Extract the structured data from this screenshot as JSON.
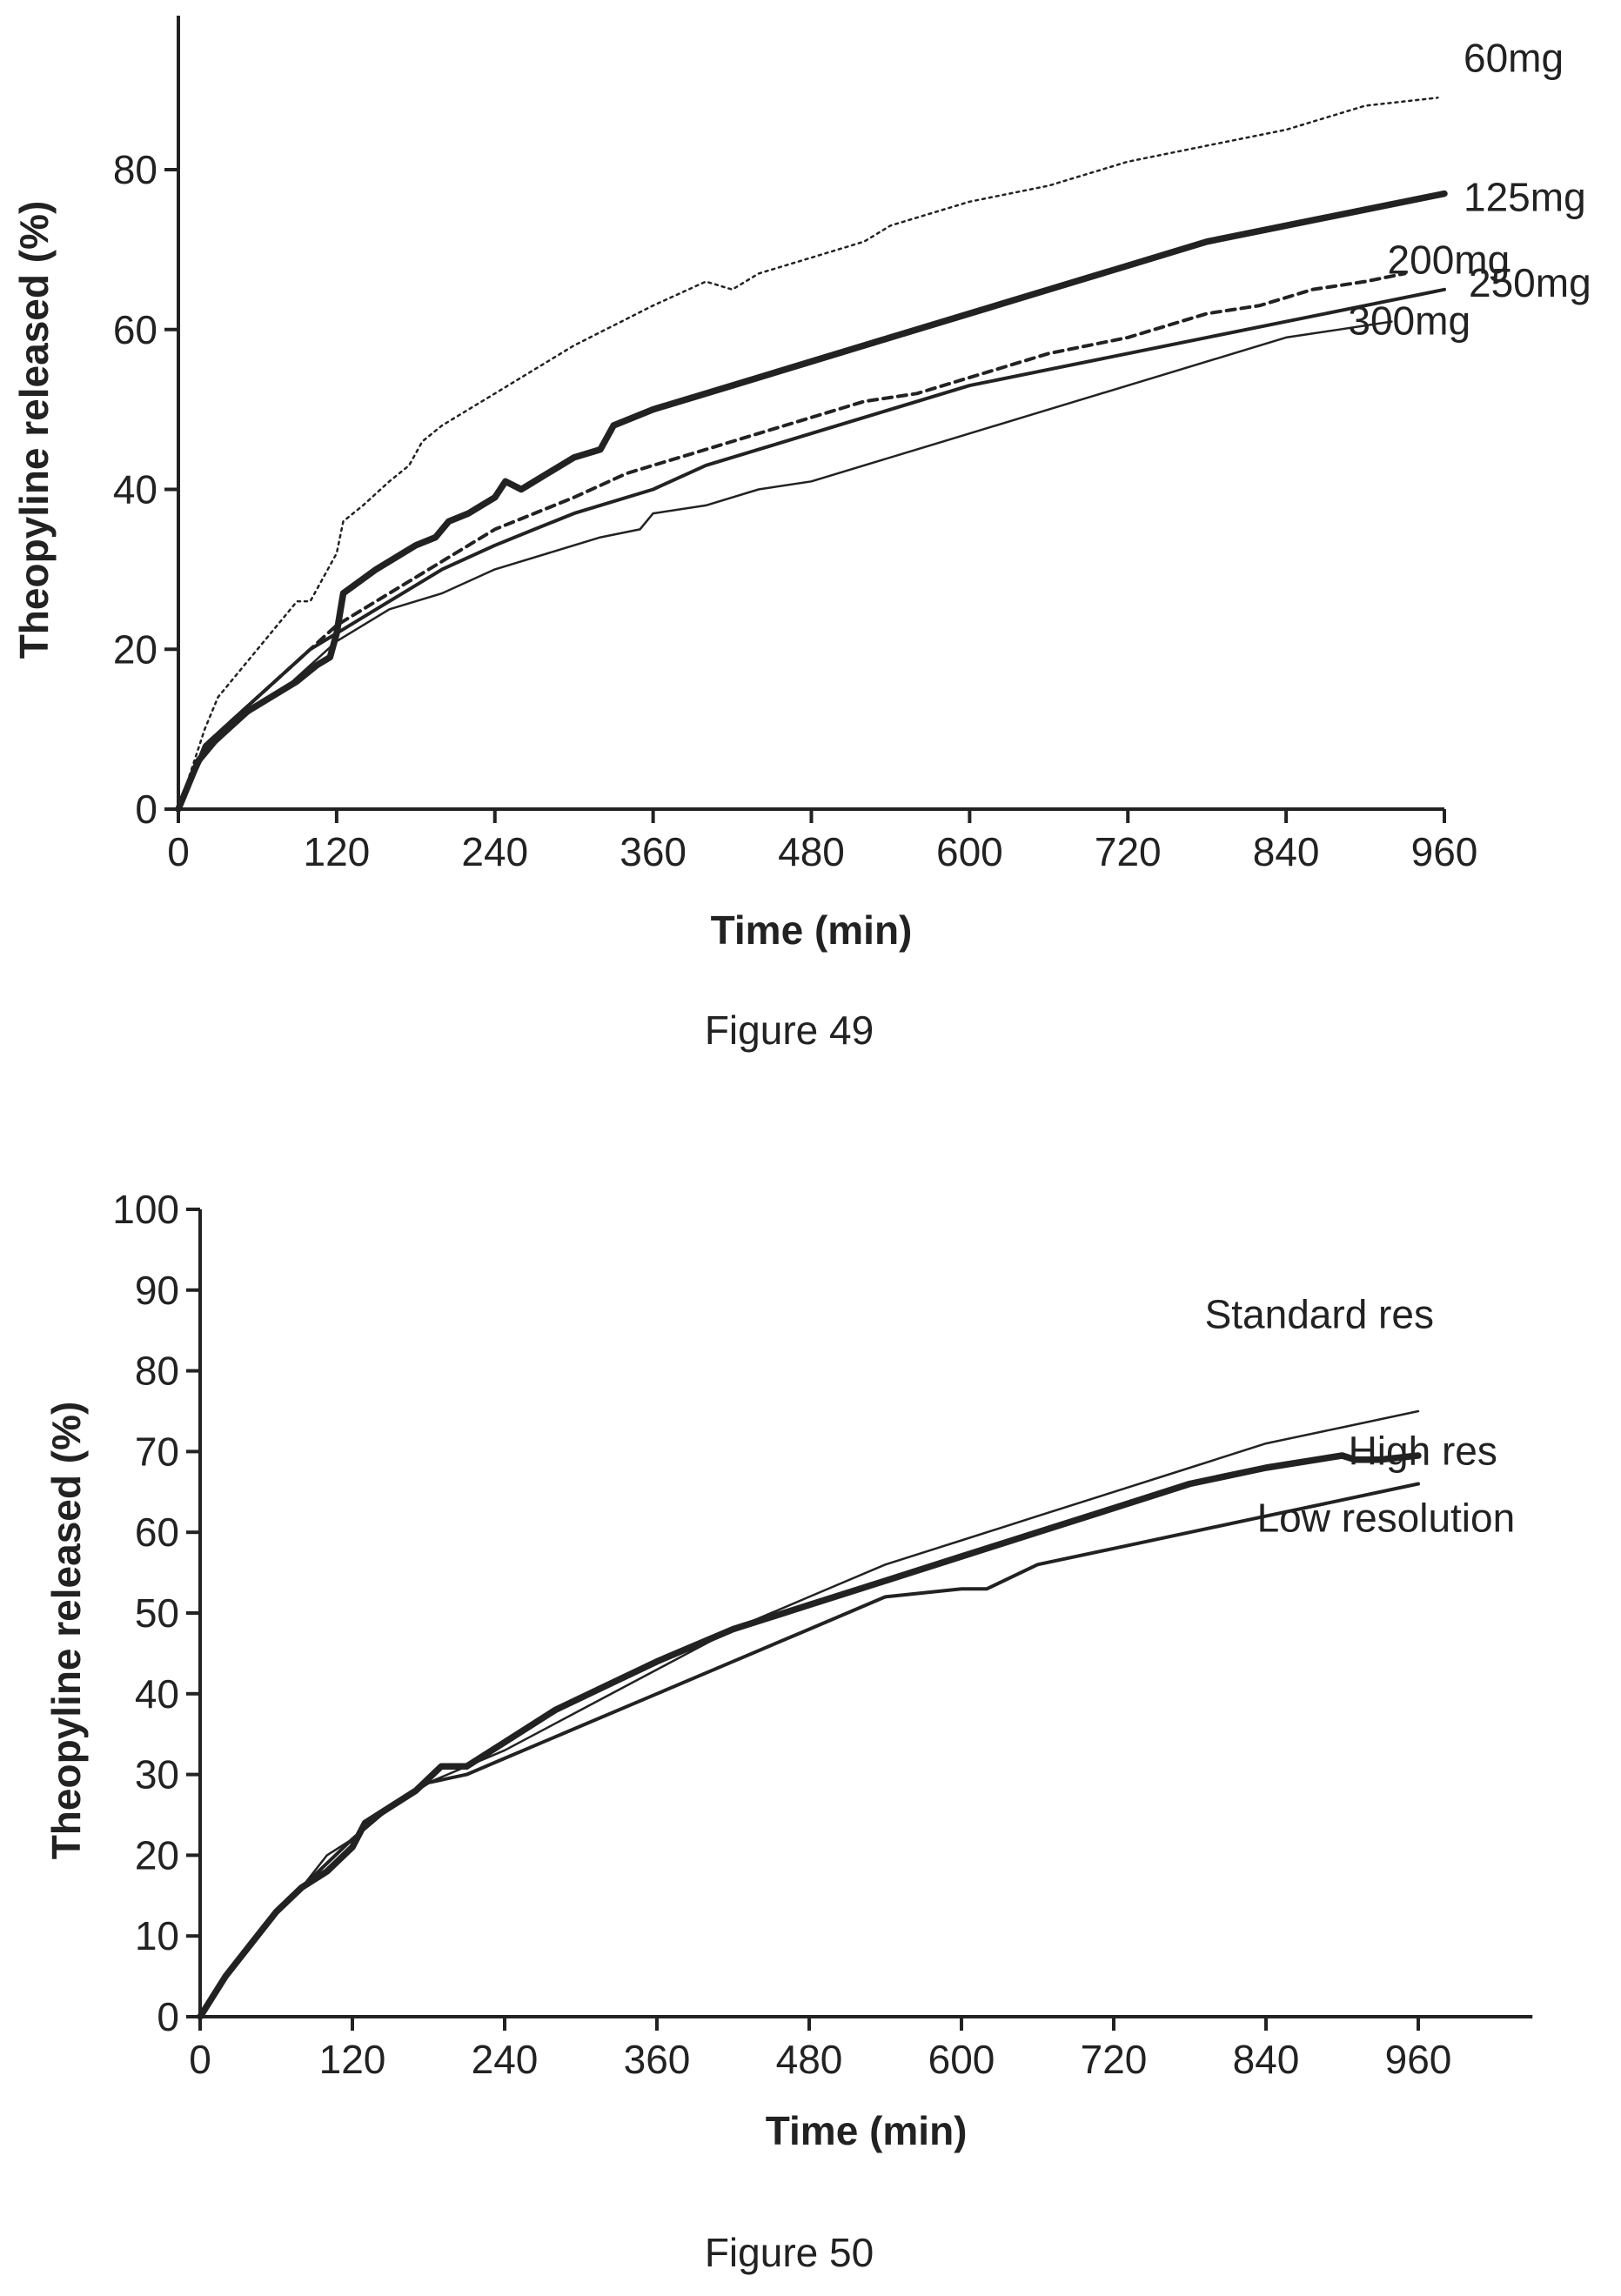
{
  "colors": {
    "ink": "#222222",
    "background": "#ffffff"
  },
  "chart_data": [
    {
      "type": "line",
      "caption": "Figure 49",
      "xlabel": "Time (min)",
      "ylabel": "Theopyline released (%)",
      "xlim": [
        0,
        960
      ],
      "ylim": [
        0,
        80
      ],
      "yaxis_top": 100,
      "x_ticks": [
        0,
        120,
        240,
        360,
        480,
        600,
        720,
        840,
        960
      ],
      "y_ticks": [
        0,
        20,
        40,
        60,
        80
      ],
      "grid": false,
      "legend": "inline labels at line ends",
      "series": [
        {
          "name": "60mg",
          "style": "dotted",
          "label_anchor": [
            960,
            89
          ],
          "points": [
            [
              0,
              0
            ],
            [
              10,
              5
            ],
            [
              20,
              10
            ],
            [
              30,
              14
            ],
            [
              50,
              18
            ],
            [
              70,
              22
            ],
            [
              90,
              26
            ],
            [
              100,
              26
            ],
            [
              110,
              29
            ],
            [
              120,
              32
            ],
            [
              125,
              36
            ],
            [
              140,
              38
            ],
            [
              160,
              41
            ],
            [
              175,
              43
            ],
            [
              185,
              46
            ],
            [
              200,
              48
            ],
            [
              240,
              52
            ],
            [
              270,
              55
            ],
            [
              300,
              58
            ],
            [
              360,
              63
            ],
            [
              400,
              66
            ],
            [
              420,
              65
            ],
            [
              440,
              67
            ],
            [
              480,
              69
            ],
            [
              520,
              71
            ],
            [
              540,
              73
            ],
            [
              600,
              76
            ],
            [
              660,
              78
            ],
            [
              720,
              81
            ],
            [
              780,
              83
            ],
            [
              840,
              85
            ],
            [
              900,
              88
            ],
            [
              955,
              89
            ]
          ]
        },
        {
          "name": "125mg",
          "style": "thick",
          "label_anchor": [
            960,
            77
          ],
          "points": [
            [
              0,
              0
            ],
            [
              15,
              6
            ],
            [
              30,
              9
            ],
            [
              50,
              12
            ],
            [
              70,
              14
            ],
            [
              90,
              16
            ],
            [
              105,
              18
            ],
            [
              115,
              19
            ],
            [
              120,
              22
            ],
            [
              125,
              27
            ],
            [
              150,
              30
            ],
            [
              180,
              33
            ],
            [
              195,
              34
            ],
            [
              205,
              36
            ],
            [
              220,
              37
            ],
            [
              240,
              39
            ],
            [
              248,
              41
            ],
            [
              260,
              40
            ],
            [
              280,
              42
            ],
            [
              300,
              44
            ],
            [
              320,
              45
            ],
            [
              330,
              48
            ],
            [
              360,
              50
            ],
            [
              420,
              53
            ],
            [
              480,
              56
            ],
            [
              540,
              59
            ],
            [
              600,
              62
            ],
            [
              660,
              65
            ],
            [
              720,
              68
            ],
            [
              780,
              71
            ],
            [
              840,
              73
            ],
            [
              900,
              75
            ],
            [
              960,
              77
            ]
          ]
        },
        {
          "name": "200mg",
          "style": "dashed",
          "label_anchor": [
            930,
            67
          ],
          "points": [
            [
              0,
              0
            ],
            [
              20,
              8
            ],
            [
              40,
              11
            ],
            [
              60,
              14
            ],
            [
              80,
              17
            ],
            [
              100,
              20
            ],
            [
              120,
              23
            ],
            [
              150,
              26
            ],
            [
              180,
              29
            ],
            [
              200,
              31
            ],
            [
              240,
              35
            ],
            [
              270,
              37
            ],
            [
              300,
              39
            ],
            [
              340,
              42
            ],
            [
              360,
              43
            ],
            [
              400,
              45
            ],
            [
              440,
              47
            ],
            [
              480,
              49
            ],
            [
              520,
              51
            ],
            [
              560,
              52
            ],
            [
              600,
              54
            ],
            [
              660,
              57
            ],
            [
              720,
              59
            ],
            [
              780,
              62
            ],
            [
              820,
              63
            ],
            [
              860,
              65
            ],
            [
              900,
              66
            ],
            [
              930,
              67
            ]
          ]
        },
        {
          "name": "250mg",
          "style": "solid",
          "label_anchor": [
            960,
            65
          ],
          "points": [
            [
              0,
              0
            ],
            [
              20,
              8
            ],
            [
              40,
              11
            ],
            [
              60,
              14
            ],
            [
              80,
              17
            ],
            [
              100,
              20
            ],
            [
              120,
              22
            ],
            [
              150,
              25
            ],
            [
              180,
              28
            ],
            [
              200,
              30
            ],
            [
              240,
              33
            ],
            [
              270,
              35
            ],
            [
              300,
              37
            ],
            [
              360,
              40
            ],
            [
              400,
              43
            ],
            [
              440,
              45
            ],
            [
              480,
              47
            ],
            [
              520,
              49
            ],
            [
              560,
              51
            ],
            [
              600,
              53
            ],
            [
              660,
              55
            ],
            [
              720,
              57
            ],
            [
              780,
              59
            ],
            [
              840,
              61
            ],
            [
              900,
              63
            ],
            [
              960,
              65
            ]
          ]
        },
        {
          "name": "300mg",
          "style": "solid-thin",
          "label_anchor": [
            920,
            61
          ],
          "points": [
            [
              0,
              0
            ],
            [
              20,
              7
            ],
            [
              40,
              10
            ],
            [
              60,
              13
            ],
            [
              80,
              15
            ],
            [
              100,
              18
            ],
            [
              120,
              21
            ],
            [
              140,
              23
            ],
            [
              160,
              25
            ],
            [
              200,
              27
            ],
            [
              240,
              30
            ],
            [
              280,
              32
            ],
            [
              320,
              34
            ],
            [
              350,
              35
            ],
            [
              360,
              37
            ],
            [
              400,
              38
            ],
            [
              440,
              40
            ],
            [
              480,
              41
            ],
            [
              520,
              43
            ],
            [
              560,
              45
            ],
            [
              600,
              47
            ],
            [
              640,
              49
            ],
            [
              680,
              51
            ],
            [
              720,
              53
            ],
            [
              760,
              55
            ],
            [
              800,
              57
            ],
            [
              840,
              59
            ],
            [
              880,
              60
            ],
            [
              920,
              61
            ]
          ]
        }
      ]
    },
    {
      "type": "line",
      "caption": "Figure 50",
      "xlabel": "Time (min)",
      "ylabel": "Theopyline released (%)",
      "xlim": [
        0,
        960
      ],
      "xaxis_end": 1050,
      "ylim": [
        0,
        100
      ],
      "x_ticks": [
        0,
        120,
        240,
        360,
        480,
        600,
        720,
        840,
        960
      ],
      "y_ticks": [
        0,
        10,
        20,
        30,
        40,
        50,
        60,
        70,
        80,
        90,
        100
      ],
      "grid": false,
      "legend": "inline labels at line ends",
      "series": [
        {
          "name": "Standard res",
          "style": "solid-thin",
          "label_anchor": [
            970,
            74
          ],
          "points": [
            [
              0,
              0
            ],
            [
              20,
              5
            ],
            [
              40,
              9
            ],
            [
              60,
              13
            ],
            [
              80,
              16
            ],
            [
              100,
              20
            ],
            [
              120,
              22
            ],
            [
              150,
              26
            ],
            [
              180,
              29
            ],
            [
              210,
              31
            ],
            [
              240,
              33
            ],
            [
              300,
              38
            ],
            [
              360,
              43
            ],
            [
              420,
              48
            ],
            [
              480,
              52
            ],
            [
              540,
              56
            ],
            [
              600,
              59
            ],
            [
              660,
              62
            ],
            [
              720,
              65
            ],
            [
              780,
              68
            ],
            [
              840,
              71
            ],
            [
              900,
              73
            ],
            [
              960,
              75
            ]
          ]
        },
        {
          "name": "High res",
          "style": "thick",
          "label_anchor": [
            970,
            70
          ],
          "points": [
            [
              0,
              0
            ],
            [
              20,
              5
            ],
            [
              40,
              9
            ],
            [
              60,
              13
            ],
            [
              80,
              16
            ],
            [
              100,
              18
            ],
            [
              120,
              21
            ],
            [
              130,
              24
            ],
            [
              150,
              26
            ],
            [
              170,
              28
            ],
            [
              190,
              31
            ],
            [
              210,
              31
            ],
            [
              240,
              34
            ],
            [
              280,
              38
            ],
            [
              320,
              41
            ],
            [
              360,
              44
            ],
            [
              420,
              48
            ],
            [
              480,
              51
            ],
            [
              540,
              54
            ],
            [
              600,
              57
            ],
            [
              660,
              60
            ],
            [
              720,
              63
            ],
            [
              780,
              66
            ],
            [
              840,
              68
            ],
            [
              900,
              69.5
            ],
            [
              910,
              69
            ],
            [
              930,
              69
            ],
            [
              960,
              69.5
            ]
          ]
        },
        {
          "name": "Low resolution",
          "style": "solid",
          "label_anchor": [
            970,
            66
          ],
          "points": [
            [
              0,
              0
            ],
            [
              20,
              5
            ],
            [
              40,
              9
            ],
            [
              60,
              13
            ],
            [
              80,
              16
            ],
            [
              100,
              19
            ],
            [
              120,
              22
            ],
            [
              150,
              26
            ],
            [
              180,
              29
            ],
            [
              210,
              30
            ],
            [
              240,
              32
            ],
            [
              300,
              36
            ],
            [
              360,
              40
            ],
            [
              420,
              44
            ],
            [
              480,
              48
            ],
            [
              540,
              52
            ],
            [
              600,
              53
            ],
            [
              620,
              53
            ],
            [
              660,
              56
            ],
            [
              720,
              58
            ],
            [
              780,
              60
            ],
            [
              840,
              62
            ],
            [
              900,
              64
            ],
            [
              960,
              66
            ]
          ]
        }
      ]
    }
  ]
}
